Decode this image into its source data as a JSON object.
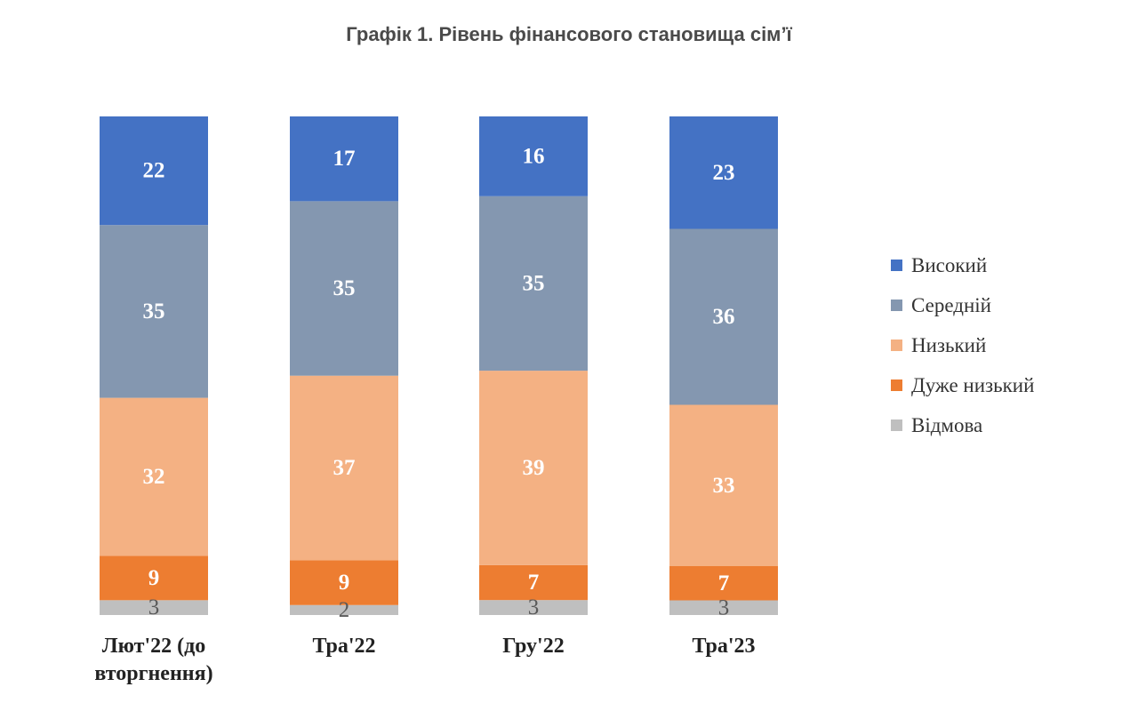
{
  "chart_data": {
    "type": "bar",
    "stacked": true,
    "percent_stacked": true,
    "title": "Графік 1. Рівень фінансового становища сім’ї",
    "categories": [
      [
        "Лют'22 (до",
        "вторгнення)"
      ],
      [
        "Тра'22"
      ],
      [
        "Гру'22"
      ],
      [
        "Тра'23"
      ]
    ],
    "series": [
      {
        "name": "Відмова",
        "color": "#bfbfbf",
        "label_color": "#595959",
        "label_weight": "normal",
        "values": [
          3,
          2,
          3,
          3
        ]
      },
      {
        "name": "Дуже низький",
        "color": "#ed7d31",
        "label_color": "#ffffff",
        "label_weight": "bold",
        "values": [
          9,
          9,
          7,
          7
        ]
      },
      {
        "name": "Низький",
        "color": "#f4b183",
        "label_color": "#ffffff",
        "label_weight": "bold",
        "values": [
          32,
          37,
          39,
          33
        ]
      },
      {
        "name": "Середній",
        "color": "#8497b0",
        "label_color": "#ffffff",
        "label_weight": "bold",
        "values": [
          35,
          35,
          35,
          36
        ]
      },
      {
        "name": "Високий",
        "color": "#4472c4",
        "label_color": "#ffffff",
        "label_weight": "bold",
        "values": [
          22,
          17,
          16,
          23
        ]
      }
    ],
    "legend_order": [
      "Високий",
      "Середній",
      "Низький",
      "Дуже низький",
      "Відмова"
    ],
    "legend_position": "right",
    "xlabel": "",
    "ylabel": "",
    "grid": false
  }
}
